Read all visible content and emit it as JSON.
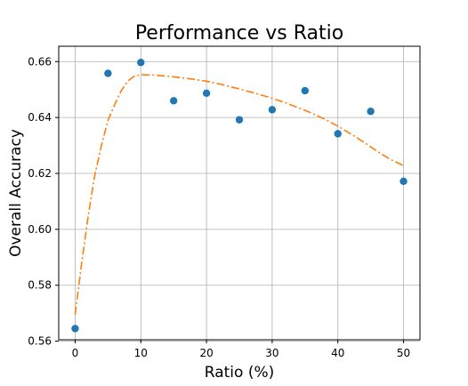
{
  "chart_data": {
    "type": "scatter",
    "title": "Performance vs Ratio",
    "xlabel": "Ratio (%)",
    "ylabel": "Overall Accuracy",
    "xlim": [
      -2.5,
      52.5
    ],
    "ylim": [
      0.5605,
      0.6655
    ],
    "x_ticks": [
      0,
      10,
      20,
      30,
      40,
      50
    ],
    "y_ticks": [
      0.56,
      0.58,
      0.6,
      0.62,
      0.64,
      0.66
    ],
    "y_tick_labels": [
      "0.56",
      "0.58",
      "0.60",
      "0.62",
      "0.64",
      "0.66"
    ],
    "grid": true,
    "series": [
      {
        "kind": "scatter",
        "color": "#1f77b4",
        "x": [
          0,
          5,
          10,
          15,
          20,
          25,
          30,
          35,
          40,
          45,
          50
        ],
        "y": [
          0.5645,
          0.6558,
          0.6597,
          0.646,
          0.6487,
          0.6392,
          0.6428,
          0.6496,
          0.6342,
          0.6422,
          0.6172
        ]
      },
      {
        "kind": "line",
        "style": "dash-dot",
        "color": "#ff7f0e",
        "x": [
          0,
          1,
          2,
          3,
          4,
          5,
          6,
          7,
          8,
          9,
          10,
          12,
          14,
          16,
          18,
          20,
          22,
          24,
          26,
          28,
          30,
          32,
          34,
          36,
          38,
          40,
          42,
          44,
          46,
          48,
          50
        ],
        "y": [
          0.5695,
          0.588,
          0.605,
          0.6195,
          0.63,
          0.639,
          0.6445,
          0.6495,
          0.653,
          0.6548,
          0.6553,
          0.6552,
          0.6548,
          0.6543,
          0.6537,
          0.653,
          0.652,
          0.6508,
          0.6496,
          0.6483,
          0.6469,
          0.6453,
          0.6435,
          0.6416,
          0.6394,
          0.6369,
          0.6341,
          0.6311,
          0.6279,
          0.625,
          0.6228
        ]
      }
    ]
  }
}
